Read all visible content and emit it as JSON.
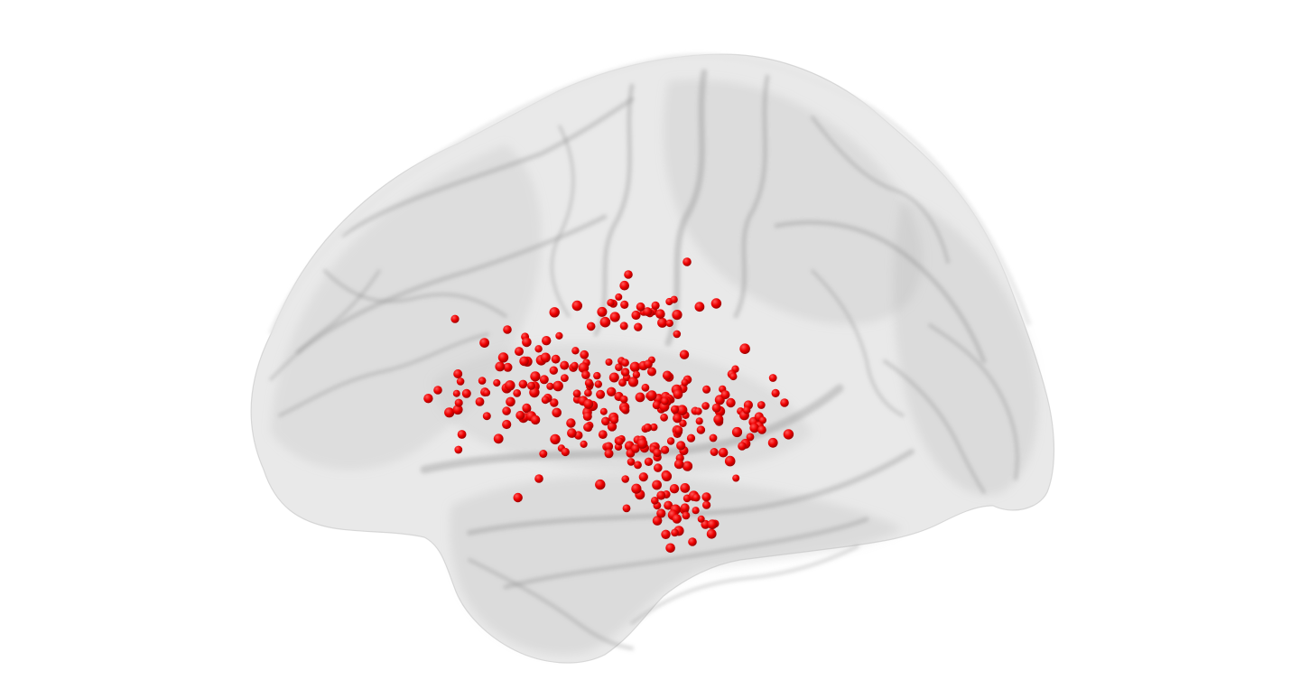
{
  "scene": {
    "background_color": "#ffffff",
    "brain_surface": {
      "hemisphere_view": "left lateral",
      "fill_color": "#cfcfcf",
      "sulcus_color": "#8c8c8c",
      "opacity": 0.45
    },
    "electrodes": {
      "count": 300,
      "color": "#ee0000",
      "highlight_color": "#ff5a5a",
      "shade_color": "#9a0000"
    }
  }
}
